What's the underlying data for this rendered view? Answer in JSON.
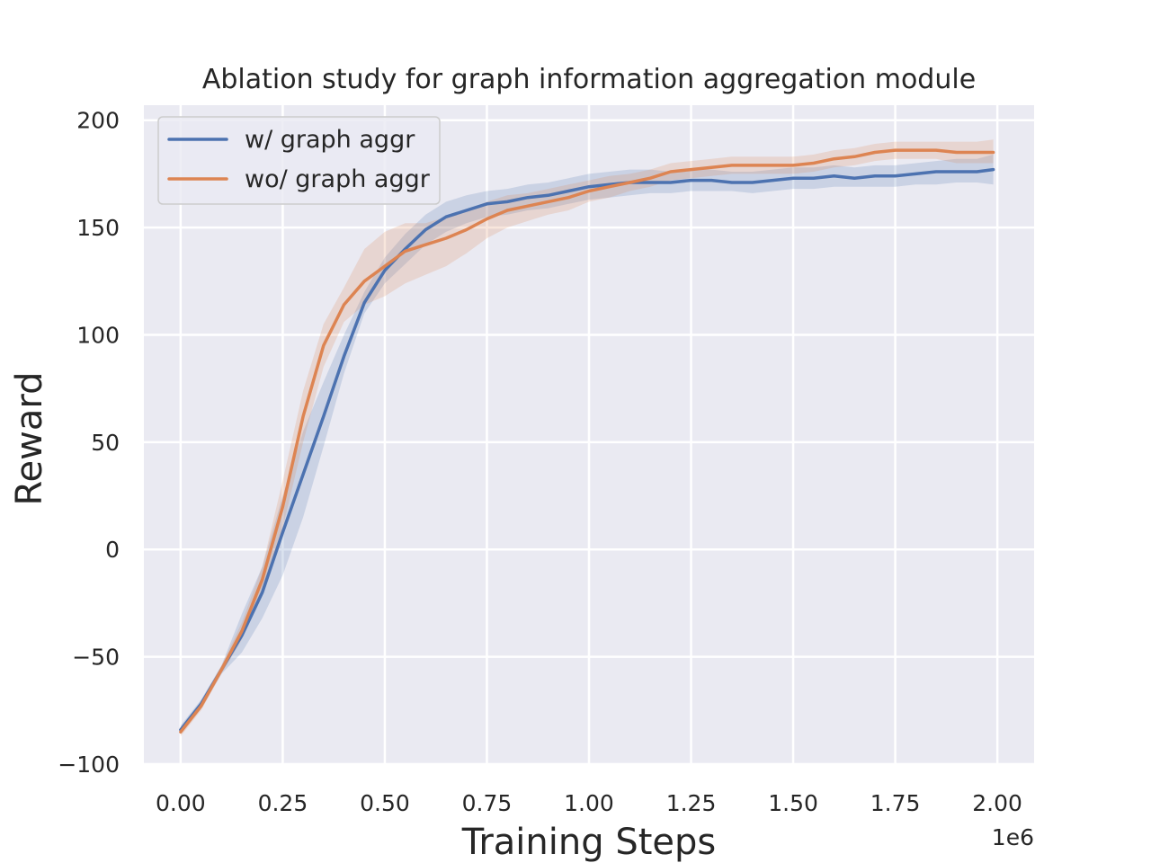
{
  "chart_data": {
    "type": "line",
    "title": "Ablation study for graph information aggregation module",
    "xlabel": "Training Steps",
    "ylabel": "Reward",
    "x_offset_label": "1e6",
    "xlim": [
      -0.09,
      2.09
    ],
    "ylim": [
      -100,
      207
    ],
    "x_ticks": [
      0.0,
      0.25,
      0.5,
      0.75,
      1.0,
      1.25,
      1.5,
      1.75,
      2.0
    ],
    "x_tick_labels": [
      "0.00",
      "0.25",
      "0.50",
      "0.75",
      "1.00",
      "1.25",
      "1.50",
      "1.75",
      "2.00"
    ],
    "y_ticks": [
      -100,
      -50,
      0,
      50,
      100,
      150,
      200
    ],
    "y_tick_labels": [
      "−100",
      "−50",
      "0",
      "50",
      "100",
      "150",
      "200"
    ],
    "grid": true,
    "legend_position": "top-left",
    "x": [
      0.0,
      0.05,
      0.1,
      0.15,
      0.2,
      0.25,
      0.3,
      0.35,
      0.4,
      0.45,
      0.5,
      0.55,
      0.6,
      0.65,
      0.7,
      0.75,
      0.8,
      0.85,
      0.9,
      0.95,
      1.0,
      1.05,
      1.1,
      1.15,
      1.2,
      1.25,
      1.3,
      1.35,
      1.4,
      1.45,
      1.5,
      1.55,
      1.6,
      1.65,
      1.7,
      1.75,
      1.8,
      1.85,
      1.9,
      1.95,
      1.99
    ],
    "series": [
      {
        "name": "w/ graph aggr",
        "color": "#4c72b0",
        "values": [
          -84,
          -72,
          -56,
          -40,
          -20,
          8,
          35,
          62,
          90,
          115,
          130,
          140,
          149,
          155,
          158,
          161,
          162,
          164,
          165,
          167,
          169,
          170,
          171,
          171,
          171,
          172,
          172,
          171,
          171,
          172,
          173,
          173,
          174,
          173,
          174,
          174,
          175,
          176,
          176,
          176,
          177
        ],
        "lower": [
          -86,
          -74,
          -58,
          -48,
          -32,
          -12,
          15,
          48,
          82,
          110,
          124,
          133,
          142,
          148,
          152,
          155,
          156,
          158,
          159,
          161,
          163,
          164,
          165,
          166,
          166,
          167,
          167,
          167,
          166,
          167,
          168,
          168,
          169,
          169,
          169,
          169,
          170,
          170,
          171,
          171,
          170
        ],
        "upper": [
          -82,
          -70,
          -54,
          -30,
          -8,
          25,
          55,
          78,
          100,
          120,
          136,
          147,
          156,
          162,
          165,
          167,
          168,
          170,
          171,
          173,
          175,
          176,
          177,
          177,
          176,
          177,
          177,
          176,
          176,
          177,
          178,
          178,
          179,
          178,
          179,
          179,
          180,
          181,
          182,
          182,
          184
        ]
      },
      {
        "name": "wo/ graph aggr",
        "color": "#dd8452",
        "values": [
          -85,
          -73,
          -56,
          -38,
          -14,
          20,
          62,
          95,
          114,
          125,
          132,
          139,
          142,
          145,
          149,
          154,
          158,
          160,
          162,
          164,
          167,
          169,
          171,
          173,
          176,
          177,
          178,
          179,
          179,
          179,
          179,
          180,
          182,
          183,
          185,
          186,
          186,
          186,
          185,
          185,
          185
        ],
        "lower": [
          -87,
          -75,
          -58,
          -42,
          -20,
          10,
          50,
          85,
          106,
          114,
          118,
          124,
          128,
          132,
          138,
          145,
          150,
          153,
          156,
          158,
          162,
          164,
          167,
          169,
          172,
          173,
          174,
          175,
          175,
          175,
          175,
          176,
          178,
          179,
          181,
          182,
          182,
          182,
          180,
          180,
          180
        ],
        "upper": [
          -83,
          -71,
          -54,
          -34,
          -8,
          32,
          74,
          105,
          122,
          140,
          148,
          152,
          152,
          155,
          158,
          162,
          165,
          166,
          168,
          170,
          172,
          174,
          175,
          177,
          180,
          181,
          182,
          183,
          183,
          183,
          183,
          184,
          186,
          187,
          189,
          190,
          190,
          190,
          190,
          190,
          191
        ]
      }
    ]
  }
}
